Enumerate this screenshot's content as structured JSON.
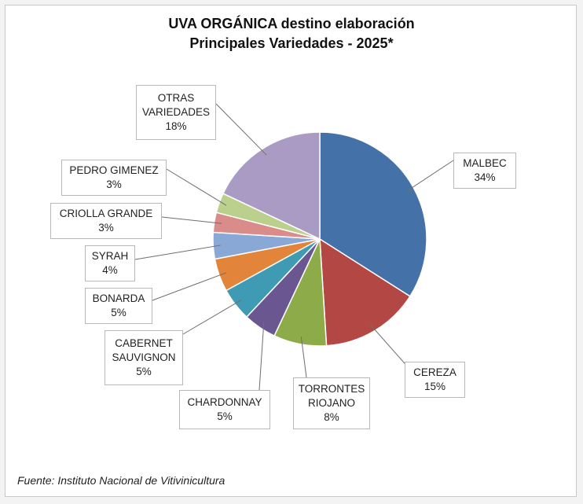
{
  "chart_data": {
    "type": "pie",
    "title": [
      "UVA ORGÁNICA destino elaboración",
      "Principales Variedades - 2025*"
    ],
    "slices": [
      {
        "name": "MALBEC",
        "value": 34,
        "label": "34%",
        "color": "#4472A8"
      },
      {
        "name": "CEREZA",
        "value": 15,
        "label": "15%",
        "color": "#B24744"
      },
      {
        "name": "TORRONTES RIOJANO",
        "value": 8,
        "label": "8%",
        "color": "#8EAB4A"
      },
      {
        "name": "CHARDONNAY",
        "value": 5,
        "label": "5%",
        "color": "#6A5690"
      },
      {
        "name": "CABERNET SAUVIGNON",
        "value": 5,
        "label": "5%",
        "color": "#3F9AB4"
      },
      {
        "name": "BONARDA",
        "value": 5,
        "label": "5%",
        "color": "#E2843A"
      },
      {
        "name": "SYRAH",
        "value": 4,
        "label": "4%",
        "color": "#8AA8D6"
      },
      {
        "name": "CRIOLLA GRANDE",
        "value": 3,
        "label": "3%",
        "color": "#D98C8A"
      },
      {
        "name": "PEDRO GIMENEZ",
        "value": 3,
        "label": "3%",
        "color": "#BCD08E"
      },
      {
        "name": "OTRAS VARIEDADES",
        "value": 18,
        "label": "18%",
        "color": "#A99BC3"
      }
    ]
  },
  "source": "Fuente: Instituto Nacional de Vitivinicultura"
}
